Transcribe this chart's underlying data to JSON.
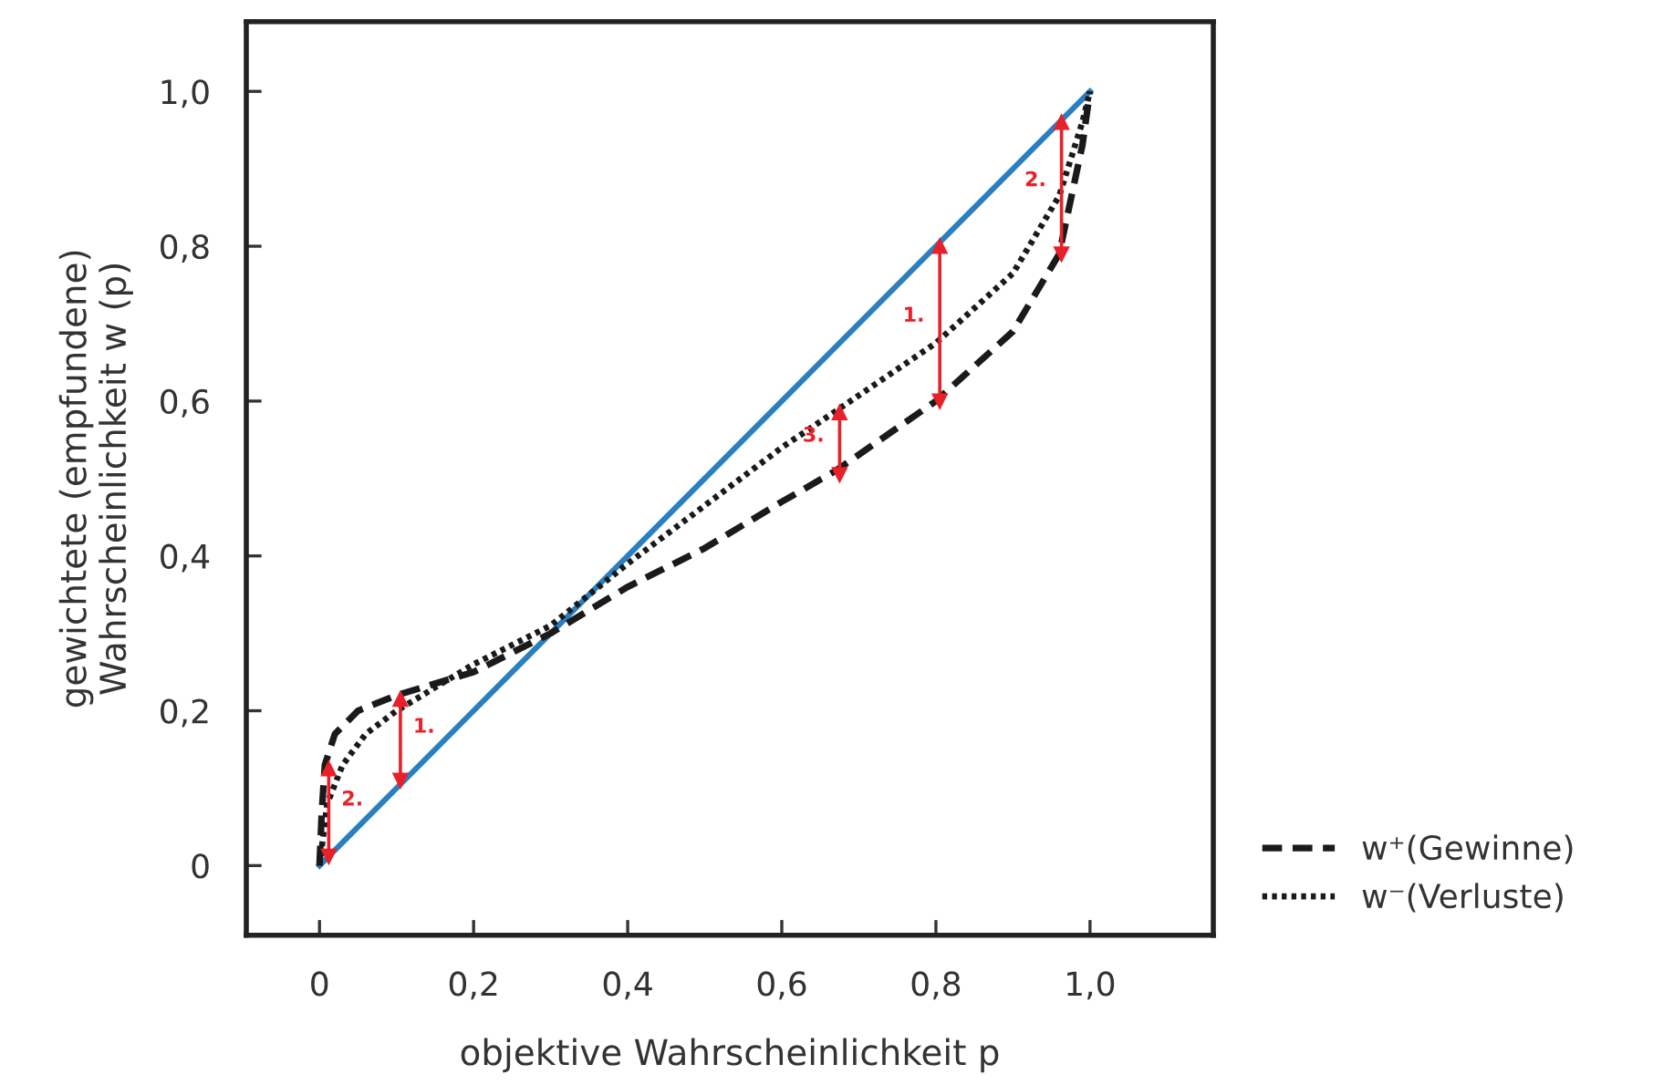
{
  "chart_data": {
    "type": "line",
    "xlabel": "objektive Wahrscheinlichkeit p",
    "ylabel": "gewichtete (empfundene)\nWahrscheinlichkeit w (p)",
    "xlim": [
      -0.095,
      1.16
    ],
    "ylim": [
      -0.09,
      1.09
    ],
    "xticks": [
      0,
      {
        "value": 0.2,
        "label": "0,2"
      },
      {
        "value": 0.4,
        "label": "0,4"
      },
      {
        "value": 0.6,
        "label": "0,6"
      },
      {
        "value": 0.8,
        "label": "0,8"
      },
      {
        "value": 1.0,
        "label": "1,0"
      }
    ],
    "yticks": [
      0,
      {
        "value": 0.2,
        "label": "0,2"
      },
      {
        "value": 0.4,
        "label": "0,4"
      },
      {
        "value": 0.6,
        "label": "0,6"
      },
      {
        "value": 0.8,
        "label": "0,8"
      },
      {
        "value": 1.0,
        "label": "1,0"
      }
    ],
    "grid": false,
    "legend": "bottom right",
    "series": [
      {
        "color": "#2a7fc1",
        "line_style": "solid",
        "x": [
          0,
          1
        ],
        "values": [
          0,
          1
        ]
      },
      {
        "name": "w⁺(Gewinne)",
        "color": "#1a1a1a",
        "line_style": "dashed",
        "x": [
          0,
          0.003,
          0.007,
          0.02,
          0.05,
          0.1,
          0.2,
          0.3,
          0.4,
          0.5,
          0.6,
          0.67,
          0.8,
          0.9,
          0.96,
          0.99,
          1
        ],
        "values": [
          0,
          0.07,
          0.13,
          0.17,
          0.2,
          0.22,
          0.25,
          0.3,
          0.36,
          0.41,
          0.47,
          0.51,
          0.6,
          0.69,
          0.79,
          0.93,
          1
        ]
      },
      {
        "name": "w⁻(Verluste)",
        "color": "#1a1a1a",
        "line_style": "dotted",
        "x": [
          0,
          0.01,
          0.03,
          0.06,
          0.1,
          0.2,
          0.3,
          0.4,
          0.5,
          0.6,
          0.67,
          0.8,
          0.9,
          0.96,
          0.99,
          1
        ],
        "values": [
          0,
          0.08,
          0.13,
          0.17,
          0.2,
          0.26,
          0.31,
          0.39,
          0.465,
          0.54,
          0.587,
          0.675,
          0.765,
          0.865,
          0.96,
          1
        ]
      },
      {
        "color": "#e8202a",
        "line_style": "solid",
        "marker": "triangle",
        "x": [
          0.012,
          0.012
        ],
        "values": [
          0.125,
          0.012
        ]
      },
      {
        "color": "#e8202a",
        "line_style": "solid",
        "marker": "triangle",
        "x": [
          0.105,
          0.105
        ],
        "values": [
          0.215,
          0.11
        ]
      },
      {
        "color": "#e8202a",
        "line_style": "solid",
        "marker": "triangle",
        "x": [
          0.675,
          0.675
        ],
        "values": [
          0.585,
          0.505
        ]
      },
      {
        "color": "#e8202a",
        "line_style": "solid",
        "marker": "triangle",
        "x": [
          0.805,
          0.805
        ],
        "values": [
          0.8,
          0.6
        ]
      },
      {
        "color": "#e8202a",
        "line_style": "solid",
        "marker": "triangle",
        "x": [
          0.963,
          0.963
        ],
        "values": [
          0.96,
          0.79
        ]
      }
    ],
    "annotations": [
      "2.",
      "1.",
      "3.",
      "1.",
      "2."
    ]
  }
}
